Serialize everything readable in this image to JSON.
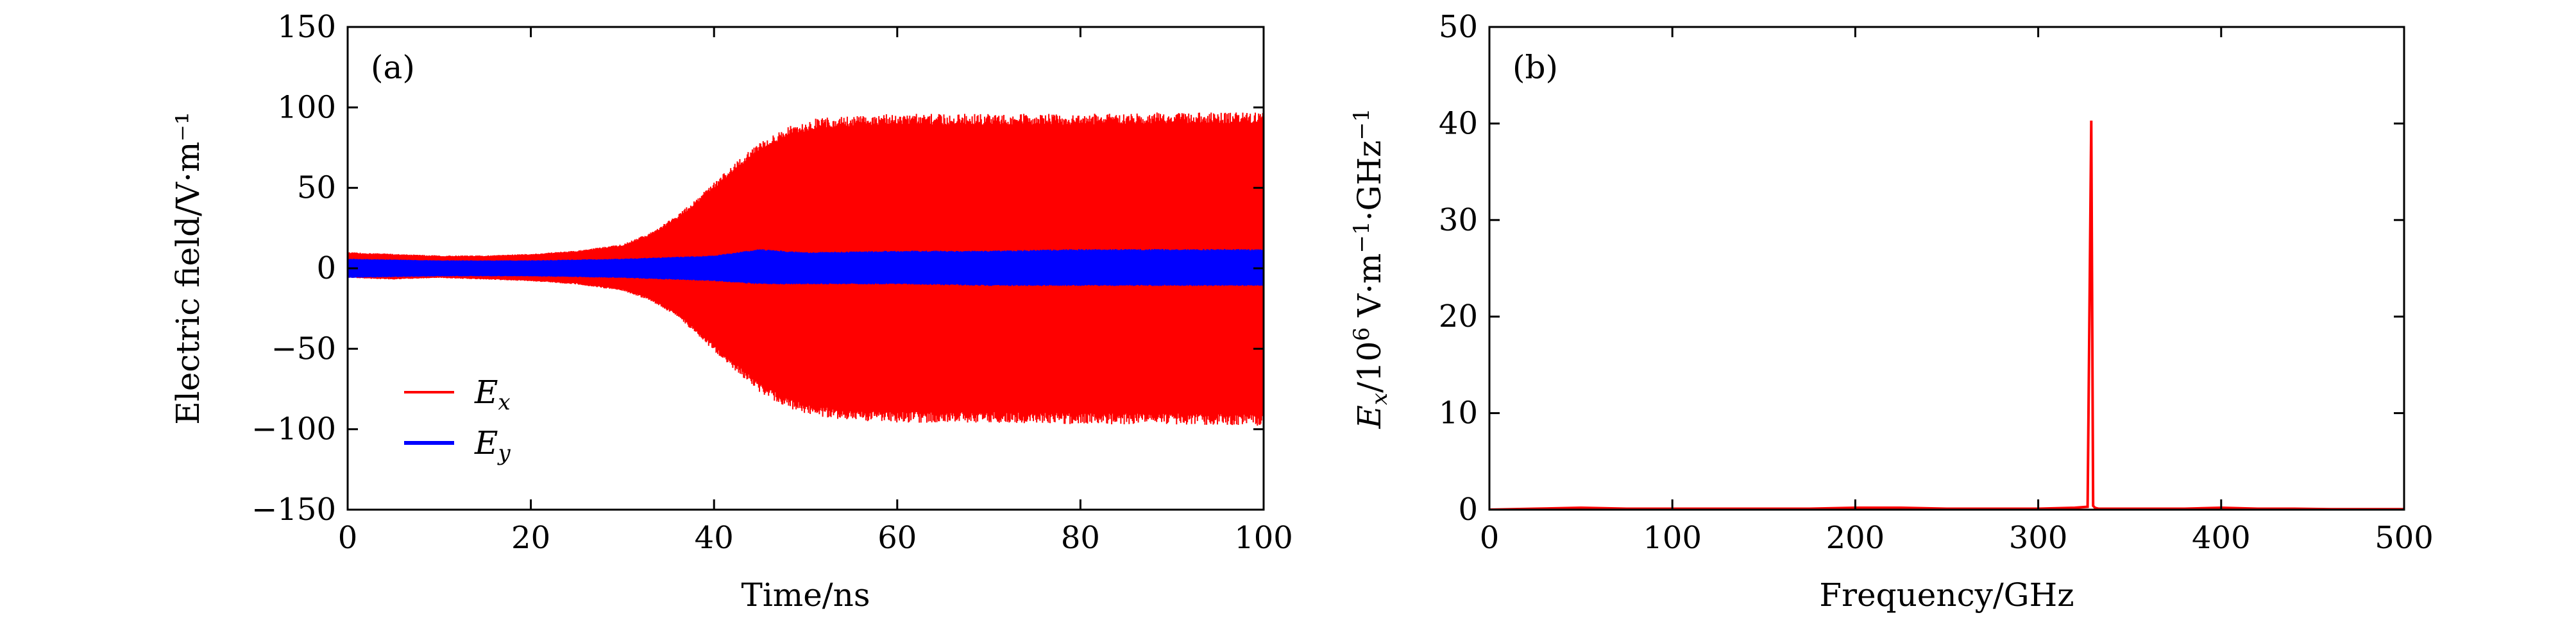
{
  "chart_data": [
    {
      "type": "line",
      "panel_label": "(a)",
      "xlabel": "Time/ns",
      "ylabel": "Electric field/V·m⁻¹",
      "xlim": [
        0,
        100
      ],
      "ylim": [
        -150,
        150
      ],
      "x_ticks": [
        "0",
        "20",
        "40",
        "60",
        "80",
        "100"
      ],
      "y_ticks": [
        "−150",
        "−100",
        "−50",
        "0",
        "50",
        "100",
        "150"
      ],
      "legend_position": "lower-left",
      "grid": false,
      "series": [
        {
          "name": "Ex",
          "name_main": "E",
          "name_sub": "x",
          "color": "#ff0000",
          "style": "oscillating band (envelope)",
          "x": [
            0,
            5,
            10,
            15,
            20,
            25,
            30,
            33,
            36,
            39,
            42,
            45,
            48,
            51,
            55,
            60,
            70,
            80,
            90,
            100
          ],
          "upper": [
            10,
            9,
            8,
            8,
            9,
            11,
            15,
            22,
            33,
            48,
            64,
            79,
            88,
            93,
            95,
            96,
            96,
            96,
            97,
            97
          ],
          "lower": [
            -6,
            -7,
            -6,
            -7,
            -8,
            -10,
            -14,
            -20,
            -30,
            -46,
            -62,
            -77,
            -87,
            -92,
            -95,
            -96,
            -96,
            -97,
            -97,
            -98
          ]
        },
        {
          "name": "Ey",
          "name_main": "E",
          "name_sub": "y",
          "color": "#0000ff",
          "style": "oscillating band (envelope)",
          "x": [
            0,
            10,
            20,
            30,
            40,
            45,
            50,
            60,
            70,
            80,
            90,
            100
          ],
          "upper": [
            6,
            5,
            5,
            6,
            8,
            12,
            10,
            11,
            11,
            12,
            12,
            12
          ],
          "lower": [
            -6,
            -5,
            -5,
            -6,
            -8,
            -10,
            -10,
            -10,
            -11,
            -11,
            -11,
            -11
          ]
        }
      ]
    },
    {
      "type": "line",
      "panel_label": "(b)",
      "xlabel": "Frequency/GHz",
      "ylabel": "Ex/10⁶ V·m⁻¹·GHz⁻¹",
      "ylabel_parts": [
        "E",
        "x",
        "/10",
        "6",
        " V·m",
        "−1",
        "·GHz",
        "−1"
      ],
      "xlim": [
        0,
        500
      ],
      "ylim": [
        0,
        50
      ],
      "x_ticks": [
        "0",
        "100",
        "200",
        "300",
        "400",
        "500"
      ],
      "y_ticks": [
        "0",
        "10",
        "20",
        "30",
        "40",
        "50"
      ],
      "grid": false,
      "series": [
        {
          "color": "#ff0000",
          "x": [
            0,
            25,
            50,
            75,
            100,
            125,
            150,
            175,
            200,
            225,
            250,
            275,
            300,
            320,
            327,
            329,
            330,
            331,
            333,
            340,
            360,
            380,
            400,
            420,
            440,
            460,
            480,
            500
          ],
          "y": [
            0,
            0.1,
            0.2,
            0.1,
            0.1,
            0.1,
            0.1,
            0.1,
            0.2,
            0.2,
            0.1,
            0.1,
            0.1,
            0.2,
            0.3,
            40.3,
            0.4,
            0.2,
            0.1,
            0.1,
            0.1,
            0.1,
            0.2,
            0.1,
            0.1,
            0.05,
            0.05,
            0.05
          ]
        }
      ]
    }
  ]
}
